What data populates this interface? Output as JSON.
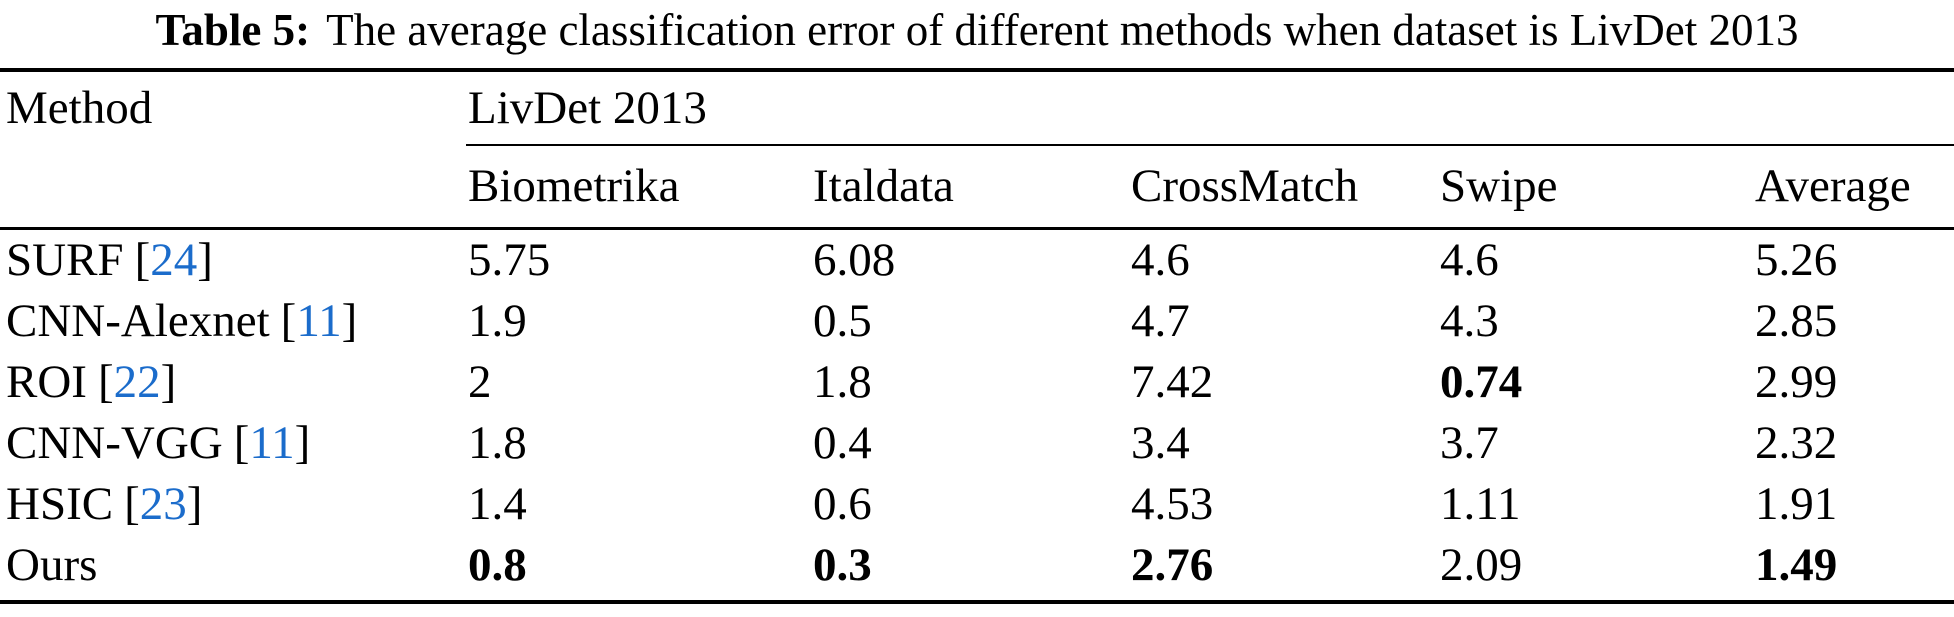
{
  "caption": {
    "label": "Table 5:",
    "text": "The average classification error of different methods when dataset is LivDet 2013"
  },
  "colors": {
    "citation_blue": "#1b6ccb",
    "text": "#000000",
    "background": "#ffffff"
  },
  "table": {
    "col1_header": "Method",
    "group_header": "LivDet 2013",
    "citation_open": "[",
    "citation_close": "]",
    "columns": [
      "Biometrika",
      "Italdata",
      "CrossMatch",
      "Swipe",
      "Average"
    ],
    "rows": [
      {
        "method": "SURF",
        "citation": "24",
        "values": [
          "5.75",
          "6.08",
          "4.6",
          "4.6",
          "5.26"
        ],
        "bold": [
          false,
          false,
          false,
          false,
          false
        ]
      },
      {
        "method": "CNN-Alexnet",
        "citation": "11",
        "values": [
          "1.9",
          "0.5",
          "4.7",
          "4.3",
          "2.85"
        ],
        "bold": [
          false,
          false,
          false,
          false,
          false
        ]
      },
      {
        "method": "ROI",
        "citation": "22",
        "values": [
          "2",
          "1.8",
          "7.42",
          "0.74",
          "2.99"
        ],
        "bold": [
          false,
          false,
          false,
          true,
          false
        ]
      },
      {
        "method": "CNN-VGG",
        "citation": "11",
        "values": [
          "1.8",
          "0.4",
          "3.4",
          "3.7",
          "2.32"
        ],
        "bold": [
          false,
          false,
          false,
          false,
          false
        ]
      },
      {
        "method": "HSIC",
        "citation": "23",
        "values": [
          "1.4",
          "0.6",
          "4.53",
          "1.11",
          "1.91"
        ],
        "bold": [
          false,
          false,
          false,
          false,
          false
        ]
      },
      {
        "method": "Ours",
        "citation": "",
        "values": [
          "0.8",
          "0.3",
          "2.76",
          "2.09",
          "1.49"
        ],
        "bold": [
          true,
          true,
          true,
          false,
          true
        ]
      }
    ]
  }
}
